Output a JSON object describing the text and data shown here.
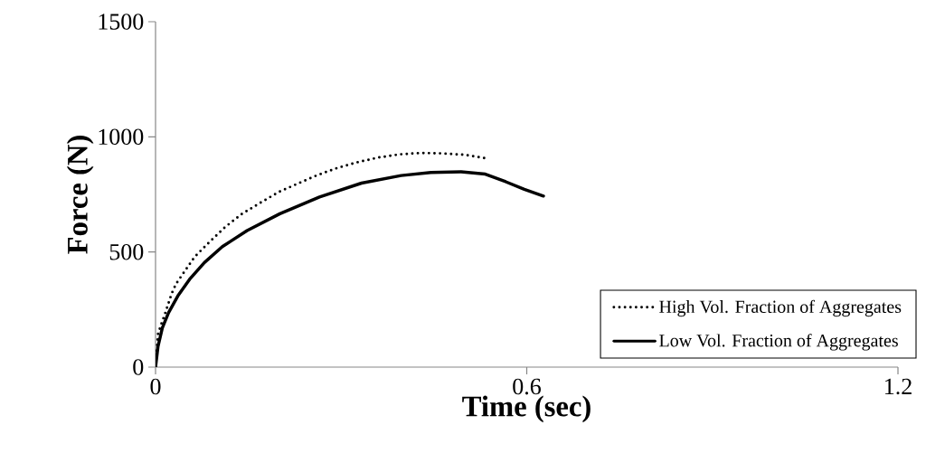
{
  "chart_data": {
    "type": "line",
    "xlabel": "Time (sec)",
    "ylabel": "Force (N)",
    "xlim": [
      0,
      1.2
    ],
    "ylim": [
      0,
      1500
    ],
    "xticks": [
      0,
      0.6,
      1.2
    ],
    "yticks": [
      0,
      500,
      1000,
      1500
    ],
    "grid": false,
    "legend": "bottom right",
    "marker": "none",
    "series": [
      {
        "name": "High Vol. Fraction of Aggregates",
        "color": "#000000",
        "line_style": "dotted",
        "x": [
          0,
          0.004,
          0.009,
          0.015,
          0.026,
          0.033,
          0.043,
          0.063,
          0.087,
          0.112,
          0.139,
          0.169,
          0.199,
          0.23,
          0.261,
          0.294,
          0.327,
          0.36,
          0.395,
          0.429,
          0.464,
          0.499,
          0.533
        ],
        "values": [
          0,
          143,
          185,
          229,
          319,
          361,
          400,
          478,
          543,
          607,
          664,
          713,
          760,
          797,
          833,
          865,
          890,
          910,
          924,
          930,
          928,
          922,
          907
        ]
      },
      {
        "name": "Low Vol. Fraction of Aggregates",
        "color": "#000000",
        "line_style": "solid",
        "x": [
          0,
          0.004,
          0.011,
          0.021,
          0.036,
          0.055,
          0.079,
          0.108,
          0.148,
          0.201,
          0.265,
          0.333,
          0.397,
          0.445,
          0.494,
          0.533,
          0.566,
          0.596,
          0.627
        ],
        "values": [
          0,
          90,
          170,
          236,
          309,
          381,
          454,
          523,
          593,
          666,
          739,
          799,
          832,
          845,
          848,
          838,
          805,
          772,
          743
        ]
      }
    ]
  }
}
